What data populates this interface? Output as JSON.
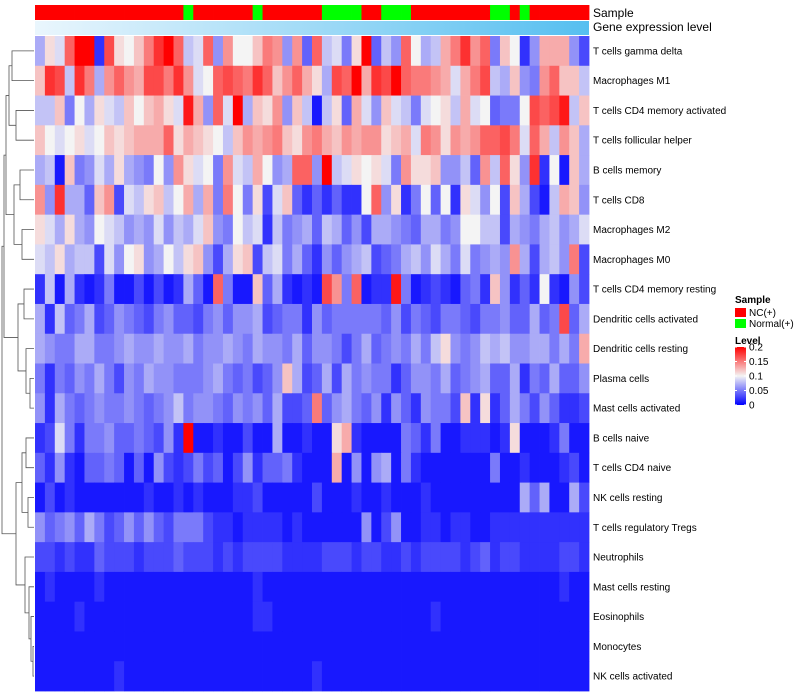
{
  "chart_data": {
    "type": "heatmap",
    "title": "",
    "annotation_labels": {
      "sample": "Sample",
      "gene_expression": "Gene expression level"
    },
    "sample_groups": {
      "NC": "NC(+)",
      "Normal": "Normal(+)"
    },
    "sample_annotation": [
      "N",
      "N",
      "N",
      "N",
      "N",
      "N",
      "N",
      "N",
      "N",
      "N",
      "N",
      "N",
      "N",
      "N",
      "N",
      "Y",
      "N",
      "N",
      "N",
      "N",
      "N",
      "N",
      "Y",
      "N",
      "N",
      "N",
      "N",
      "N",
      "N",
      "Y",
      "Y",
      "Y",
      "Y",
      "N",
      "N",
      "Y",
      "Y",
      "Y",
      "N",
      "N",
      "N",
      "N",
      "N",
      "N",
      "N",
      "N",
      "Y",
      "Y",
      "N",
      "Y",
      "N",
      "N",
      "N",
      "N",
      "N",
      "N"
    ],
    "rows": [
      "T cells gamma delta",
      "Macrophages M1",
      "T cells CD4 memory activated",
      "T cells follicular helper",
      "B cells memory",
      "T cells CD8",
      "Macrophages M2",
      "Macrophages M0",
      "T cells CD4 memory resting",
      "Dendritic cells activated",
      "Dendritic cells resting",
      "Plasma cells",
      "Mast cells activated",
      "B cells naive",
      "T cells CD4 naive",
      "NK cells resting",
      "T cells regulatory  Tregs",
      "Neutrophils",
      "Mast cells resting",
      "Eosinophils",
      "Monocytes",
      "NK cells activated"
    ],
    "n_columns": 56,
    "legend": {
      "sample_title": "Sample",
      "sample_entries": [
        {
          "label": "NC(+)",
          "color": "#ff0000"
        },
        {
          "label": "Normal(+)",
          "color": "#00ff00"
        }
      ],
      "level_title": "Level",
      "level_ticks": [
        "0.2",
        "0.15",
        "0.1",
        "0.05",
        "0"
      ],
      "level_tick_values": [
        0.2,
        0.15,
        0.1,
        0.05,
        0
      ]
    },
    "color_scale": {
      "low": "#0000ff",
      "mid": "#f4f4f4",
      "high": "#ff0000",
      "min": 0,
      "mid_value": 0.1,
      "max": 0.2
    },
    "values": [
      [
        0.07,
        0.11,
        0.09,
        0.16,
        0.2,
        0.2,
        0.02,
        0.17,
        0.11,
        0.1,
        0.12,
        0.15,
        0.18,
        0.2,
        0.16,
        0.08,
        0.09,
        0.16,
        0.06,
        0.14,
        0.1,
        0.1,
        0.12,
        0.15,
        0.14,
        0.06,
        0.14,
        0.04,
        0.16,
        0.08,
        0.09,
        0.05,
        0.11,
        0.2,
        0.04,
        0.08,
        0.06,
        0.16,
        0.1,
        0.07,
        0.08,
        0.13,
        0.15,
        0.18,
        0.14,
        0.16,
        0.05,
        0.12,
        0.1,
        0.02,
        0.06,
        0.13,
        0.13,
        0.13,
        0.06,
        0.03
      ],
      [
        0.12,
        0.18,
        0.17,
        0.08,
        0.18,
        0.15,
        0.07,
        0.14,
        0.16,
        0.14,
        0.13,
        0.17,
        0.17,
        0.15,
        0.18,
        0.14,
        0.09,
        0.1,
        0.16,
        0.17,
        0.16,
        0.15,
        0.18,
        0.16,
        0.12,
        0.14,
        0.16,
        0.13,
        0.11,
        0.07,
        0.17,
        0.16,
        0.2,
        0.13,
        0.18,
        0.17,
        0.2,
        0.16,
        0.15,
        0.15,
        0.14,
        0.13,
        0.09,
        0.13,
        0.15,
        0.17,
        0.08,
        0.07,
        0.12,
        0.06,
        0.05,
        0.14,
        0.16,
        0.12,
        0.12,
        0.08
      ],
      [
        0.08,
        0.08,
        0.12,
        0.05,
        0.1,
        0.07,
        0.11,
        0.09,
        0.08,
        0.12,
        0.1,
        0.12,
        0.13,
        0.11,
        0.09,
        0.19,
        0.13,
        0.06,
        0.16,
        0.09,
        0.2,
        0.07,
        0.12,
        0.11,
        0.14,
        0.06,
        0.12,
        0.08,
        0.01,
        0.08,
        0.11,
        0.04,
        0.13,
        0.09,
        0.06,
        0.12,
        0.09,
        0.08,
        0.05,
        0.09,
        0.1,
        0.11,
        0.08,
        0.13,
        0.09,
        0.1,
        0.04,
        0.05,
        0.05,
        0.1,
        0.17,
        0.16,
        0.17,
        0.19,
        0.08,
        0.12
      ],
      [
        0.12,
        0.1,
        0.09,
        0.1,
        0.11,
        0.09,
        0.1,
        0.12,
        0.11,
        0.12,
        0.13,
        0.13,
        0.13,
        0.16,
        0.11,
        0.13,
        0.12,
        0.11,
        0.1,
        0.08,
        0.12,
        0.14,
        0.13,
        0.14,
        0.15,
        0.12,
        0.11,
        0.14,
        0.15,
        0.13,
        0.12,
        0.14,
        0.13,
        0.14,
        0.14,
        0.11,
        0.12,
        0.13,
        0.09,
        0.15,
        0.14,
        0.11,
        0.14,
        0.13,
        0.14,
        0.16,
        0.16,
        0.17,
        0.15,
        0.09,
        0.16,
        0.13,
        0.08,
        0.14,
        0.12,
        0.07
      ],
      [
        0.07,
        0.08,
        0.01,
        0.12,
        0.05,
        0.06,
        0.09,
        0.07,
        0.11,
        0.07,
        0.06,
        0.05,
        0.1,
        0.06,
        0.14,
        0.11,
        0.09,
        0.1,
        0.05,
        0.14,
        0.09,
        0.08,
        0.13,
        0.1,
        0.06,
        0.07,
        0.16,
        0.16,
        0.06,
        0.2,
        0.08,
        0.09,
        0.11,
        0.1,
        0.11,
        0.09,
        0.05,
        0.14,
        0.11,
        0.11,
        0.12,
        0.06,
        0.06,
        0.08,
        0.04,
        0.14,
        0.08,
        0.16,
        0.11,
        0.06,
        0.18,
        0.02,
        0.1,
        0.01,
        0.12,
        0.07
      ],
      [
        0.14,
        0.06,
        0.18,
        0.07,
        0.07,
        0.04,
        0.12,
        0.14,
        0.03,
        0.09,
        0.08,
        0.11,
        0.12,
        0.08,
        0.1,
        0.13,
        0.07,
        0.13,
        0.05,
        0.15,
        0.1,
        0.05,
        0.11,
        0.03,
        0.09,
        0.12,
        0.04,
        0.02,
        0.04,
        0.02,
        0.04,
        0.02,
        0.02,
        0.1,
        0.16,
        0.06,
        0.11,
        0.02,
        0.05,
        0.1,
        0.04,
        0.1,
        0.02,
        0.11,
        0.09,
        0.06,
        0.1,
        0.03,
        0.12,
        0.07,
        0.03,
        0.01,
        0.08,
        0.13,
        0.12,
        0.06
      ],
      [
        0.11,
        0.09,
        0.07,
        0.11,
        0.07,
        0.06,
        0.1,
        0.09,
        0.08,
        0.06,
        0.07,
        0.06,
        0.09,
        0.06,
        0.08,
        0.07,
        0.09,
        0.12,
        0.06,
        0.05,
        0.1,
        0.08,
        0.09,
        0.02,
        0.08,
        0.05,
        0.06,
        0.07,
        0.04,
        0.08,
        0.07,
        0.04,
        0.06,
        0.03,
        0.07,
        0.07,
        0.06,
        0.05,
        0.04,
        0.07,
        0.07,
        0.05,
        0.06,
        0.1,
        0.1,
        0.08,
        0.08,
        0.03,
        0.07,
        0.06,
        0.05,
        0.07,
        0.08,
        0.06,
        0.07,
        0.09
      ],
      [
        0.09,
        0.08,
        0.11,
        0.07,
        0.08,
        0.08,
        0.03,
        0.09,
        0.06,
        0.1,
        0.11,
        0.06,
        0.07,
        0.1,
        0.08,
        0.11,
        0.12,
        0.06,
        0.03,
        0.07,
        0.11,
        0.12,
        0.03,
        0.08,
        0.09,
        0.05,
        0.07,
        0.04,
        0.02,
        0.06,
        0.04,
        0.06,
        0.07,
        0.08,
        0.03,
        0.04,
        0.05,
        0.07,
        0.08,
        0.06,
        0.09,
        0.07,
        0.05,
        0.09,
        0.05,
        0.06,
        0.07,
        0.06,
        0.14,
        0.07,
        0.03,
        0.07,
        0.08,
        0.06,
        0.15,
        0.03
      ],
      [
        0.02,
        0.08,
        0.01,
        0.07,
        0.02,
        0.01,
        0.02,
        0.05,
        0.01,
        0.01,
        0.03,
        0.01,
        0.03,
        0.01,
        0.02,
        0.07,
        0.04,
        0.01,
        0.16,
        0.05,
        0.01,
        0.01,
        0.12,
        0.04,
        0.07,
        0.02,
        0.01,
        0.02,
        0.01,
        0.17,
        0.14,
        0.05,
        0.16,
        0.01,
        0.02,
        0.02,
        0.19,
        0.05,
        0.01,
        0.02,
        0.03,
        0.02,
        0.01,
        0.04,
        0.05,
        0.02,
        0.12,
        0.06,
        0.02,
        0.04,
        0.02,
        0.1,
        0.02,
        0.01,
        0.06,
        0.03
      ],
      [
        0.07,
        0.02,
        0.08,
        0.04,
        0.05,
        0.07,
        0.03,
        0.04,
        0.06,
        0.05,
        0.04,
        0.03,
        0.05,
        0.06,
        0.04,
        0.04,
        0.03,
        0.05,
        0.06,
        0.04,
        0.06,
        0.06,
        0.07,
        0.03,
        0.04,
        0.05,
        0.05,
        0.02,
        0.06,
        0.04,
        0.05,
        0.05,
        0.05,
        0.05,
        0.05,
        0.04,
        0.06,
        0.03,
        0.05,
        0.04,
        0.03,
        0.05,
        0.05,
        0.04,
        0.03,
        0.05,
        0.05,
        0.06,
        0.04,
        0.04,
        0.07,
        0.04,
        0.05,
        0.17,
        0.04,
        0.07
      ],
      [
        0.07,
        0.06,
        0.05,
        0.05,
        0.07,
        0.07,
        0.05,
        0.05,
        0.06,
        0.07,
        0.06,
        0.06,
        0.07,
        0.06,
        0.06,
        0.07,
        0.05,
        0.06,
        0.06,
        0.07,
        0.06,
        0.05,
        0.07,
        0.06,
        0.06,
        0.05,
        0.07,
        0.04,
        0.06,
        0.06,
        0.05,
        0.03,
        0.05,
        0.07,
        0.04,
        0.05,
        0.06,
        0.05,
        0.07,
        0.05,
        0.08,
        0.11,
        0.06,
        0.05,
        0.06,
        0.08,
        0.07,
        0.08,
        0.06,
        0.06,
        0.07,
        0.07,
        0.05,
        0.07,
        0.05,
        0.13
      ],
      [
        0.05,
        0.02,
        0.05,
        0.04,
        0.06,
        0.05,
        0.07,
        0.05,
        0.03,
        0.06,
        0.05,
        0.07,
        0.06,
        0.06,
        0.05,
        0.05,
        0.05,
        0.06,
        0.07,
        0.05,
        0.04,
        0.05,
        0.03,
        0.04,
        0.06,
        0.12,
        0.07,
        0.03,
        0.04,
        0.07,
        0.03,
        0.07,
        0.05,
        0.06,
        0.05,
        0.05,
        0.02,
        0.04,
        0.06,
        0.06,
        0.05,
        0.07,
        0.04,
        0.05,
        0.06,
        0.07,
        0.04,
        0.04,
        0.07,
        0.02,
        0.05,
        0.04,
        0.07,
        0.04,
        0.04,
        0.06
      ],
      [
        0.06,
        0.02,
        0.07,
        0.05,
        0.04,
        0.05,
        0.06,
        0.05,
        0.05,
        0.06,
        0.05,
        0.04,
        0.05,
        0.06,
        0.08,
        0.05,
        0.06,
        0.06,
        0.05,
        0.04,
        0.06,
        0.05,
        0.06,
        0.04,
        0.07,
        0.03,
        0.03,
        0.04,
        0.15,
        0.04,
        0.06,
        0.07,
        0.05,
        0.04,
        0.06,
        0.02,
        0.06,
        0.04,
        0.02,
        0.06,
        0.05,
        0.05,
        0.03,
        0.12,
        0.02,
        0.11,
        0.02,
        0.04,
        0.07,
        0.05,
        0.03,
        0.06,
        0.04,
        0.02,
        0.02,
        0.03
      ],
      [
        0.02,
        0.03,
        0.09,
        0.05,
        0.02,
        0.05,
        0.05,
        0.06,
        0.04,
        0.04,
        0.05,
        0.04,
        0.03,
        0.06,
        0.02,
        0.2,
        0.01,
        0.01,
        0.02,
        0.01,
        0.01,
        0.03,
        0.01,
        0.01,
        0.07,
        0.01,
        0.01,
        0.02,
        0.01,
        0.01,
        0.11,
        0.13,
        0.02,
        0.01,
        0.01,
        0.01,
        0.01,
        0.05,
        0.04,
        0.02,
        0.05,
        0.01,
        0.01,
        0.02,
        0.02,
        0.02,
        0.01,
        0.02,
        0.11,
        0.01,
        0.01,
        0.01,
        0.02,
        0.05,
        0.01,
        0.01
      ],
      [
        0.04,
        0.02,
        0.06,
        0.02,
        0.01,
        0.04,
        0.04,
        0.05,
        0.04,
        0.01,
        0.04,
        0.01,
        0.06,
        0.03,
        0.02,
        0.03,
        0.05,
        0.03,
        0.04,
        0.01,
        0.03,
        0.06,
        0.02,
        0.04,
        0.04,
        0.05,
        0.02,
        0.01,
        0.01,
        0.01,
        0.13,
        0.01,
        0.06,
        0.01,
        0.06,
        0.07,
        0.01,
        0.05,
        0.02,
        0.01,
        0.01,
        0.01,
        0.01,
        0.01,
        0.01,
        0.01,
        0.05,
        0.01,
        0.01,
        0.02,
        0.01,
        0.01,
        0.01,
        0.02,
        0.03,
        0.01
      ],
      [
        0.01,
        0.03,
        0.01,
        0.02,
        0.01,
        0.01,
        0.01,
        0.01,
        0.01,
        0.01,
        0.01,
        0.02,
        0.01,
        0.01,
        0.02,
        0.01,
        0.02,
        0.01,
        0.01,
        0.01,
        0.02,
        0.02,
        0.03,
        0.01,
        0.01,
        0.01,
        0.01,
        0.01,
        0.03,
        0.01,
        0.01,
        0.01,
        0.02,
        0.01,
        0.01,
        0.02,
        0.01,
        0.01,
        0.01,
        0.02,
        0.01,
        0.01,
        0.01,
        0.01,
        0.01,
        0.01,
        0.01,
        0.01,
        0.01,
        0.07,
        0.04,
        0.07,
        0.01,
        0.01,
        0.07,
        0.03
      ],
      [
        0.06,
        0.04,
        0.05,
        0.06,
        0.04,
        0.07,
        0.05,
        0.03,
        0.04,
        0.06,
        0.04,
        0.06,
        0.04,
        0.03,
        0.05,
        0.05,
        0.05,
        0.03,
        0.02,
        0.02,
        0.01,
        0.02,
        0.02,
        0.02,
        0.02,
        0.01,
        0.02,
        0.01,
        0.01,
        0.01,
        0.01,
        0.01,
        0.01,
        0.06,
        0.01,
        0.03,
        0.06,
        0.01,
        0.01,
        0.02,
        0.02,
        0.01,
        0.02,
        0.02,
        0.01,
        0.01,
        0.02,
        0.02,
        0.02,
        0.02,
        0.02,
        0.02,
        0.02,
        0.02,
        0.02,
        0.02
      ],
      [
        0.03,
        0.03,
        0.02,
        0.03,
        0.02,
        0.02,
        0.04,
        0.03,
        0.03,
        0.03,
        0.02,
        0.03,
        0.03,
        0.03,
        0.04,
        0.03,
        0.03,
        0.03,
        0.02,
        0.03,
        0.02,
        0.03,
        0.03,
        0.03,
        0.03,
        0.02,
        0.02,
        0.02,
        0.02,
        0.03,
        0.03,
        0.03,
        0.02,
        0.03,
        0.03,
        0.02,
        0.02,
        0.03,
        0.02,
        0.03,
        0.03,
        0.03,
        0.03,
        0.02,
        0.03,
        0.04,
        0.02,
        0.03,
        0.03,
        0.02,
        0.02,
        0.02,
        0.02,
        0.03,
        0.03,
        0.02
      ],
      [
        0.01,
        0.02,
        0.01,
        0.01,
        0.01,
        0.01,
        0.02,
        0.01,
        0.01,
        0.01,
        0.01,
        0.01,
        0.01,
        0.01,
        0.01,
        0.01,
        0.01,
        0.01,
        0.01,
        0.01,
        0.01,
        0.01,
        0.02,
        0.01,
        0.01,
        0.01,
        0.01,
        0.01,
        0.01,
        0.01,
        0.01,
        0.01,
        0.01,
        0.01,
        0.01,
        0.01,
        0.01,
        0.01,
        0.01,
        0.01,
        0.01,
        0.01,
        0.01,
        0.01,
        0.01,
        0.01,
        0.01,
        0.01,
        0.01,
        0.01,
        0.01,
        0.01,
        0.01,
        0.02,
        0.01,
        0.01
      ],
      [
        0.01,
        0.01,
        0.01,
        0.01,
        0.02,
        0.01,
        0.01,
        0.01,
        0.01,
        0.01,
        0.01,
        0.01,
        0.01,
        0.01,
        0.01,
        0.01,
        0.01,
        0.01,
        0.01,
        0.01,
        0.01,
        0.01,
        0.02,
        0.02,
        0.01,
        0.01,
        0.01,
        0.01,
        0.01,
        0.01,
        0.01,
        0.01,
        0.01,
        0.01,
        0.01,
        0.01,
        0.01,
        0.01,
        0.01,
        0.01,
        0.02,
        0.01,
        0.01,
        0.01,
        0.01,
        0.01,
        0.01,
        0.01,
        0.01,
        0.01,
        0.01,
        0.01,
        0.01,
        0.01,
        0.01,
        0.01
      ],
      [
        0.01,
        0.01,
        0.01,
        0.01,
        0.01,
        0.01,
        0.01,
        0.01,
        0.01,
        0.01,
        0.01,
        0.01,
        0.01,
        0.01,
        0.01,
        0.01,
        0.01,
        0.01,
        0.01,
        0.01,
        0.01,
        0.01,
        0.01,
        0.01,
        0.01,
        0.01,
        0.01,
        0.01,
        0.01,
        0.01,
        0.01,
        0.01,
        0.01,
        0.01,
        0.01,
        0.01,
        0.01,
        0.01,
        0.01,
        0.01,
        0.01,
        0.01,
        0.01,
        0.01,
        0.01,
        0.01,
        0.01,
        0.01,
        0.01,
        0.01,
        0.01,
        0.01,
        0.01,
        0.01,
        0.01,
        0.01
      ],
      [
        0.01,
        0.01,
        0.01,
        0.01,
        0.01,
        0.01,
        0.01,
        0.01,
        0.02,
        0.01,
        0.01,
        0.01,
        0.01,
        0.01,
        0.01,
        0.01,
        0.01,
        0.01,
        0.01,
        0.01,
        0.01,
        0.01,
        0.01,
        0.01,
        0.01,
        0.01,
        0.01,
        0.01,
        0.02,
        0.01,
        0.01,
        0.01,
        0.01,
        0.01,
        0.01,
        0.01,
        0.01,
        0.01,
        0.01,
        0.01,
        0.01,
        0.01,
        0.01,
        0.01,
        0.01,
        0.01,
        0.01,
        0.01,
        0.01,
        0.01,
        0.01,
        0.01,
        0.01,
        0.01,
        0.01,
        0.01
      ]
    ]
  }
}
